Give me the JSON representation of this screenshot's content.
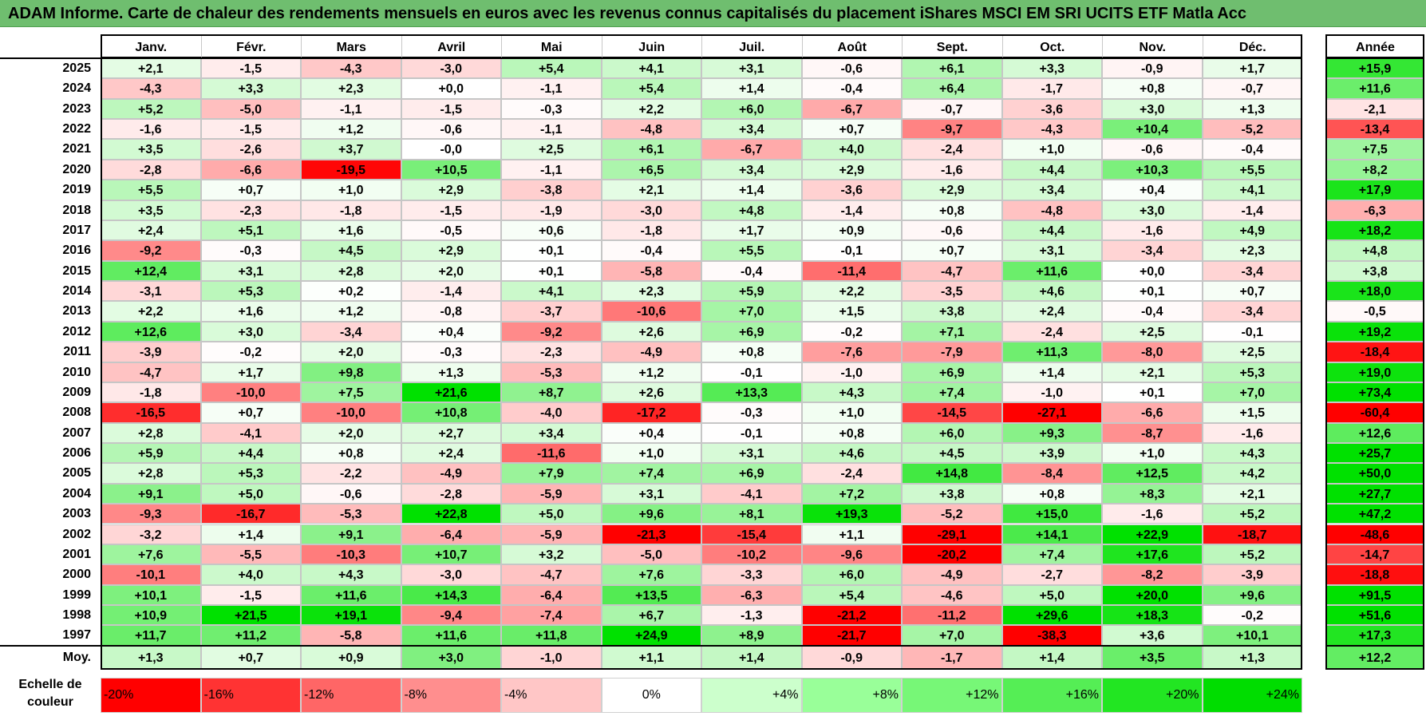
{
  "title": "ADAM Informe. Carte de chaleur des rendements mensuels en euros avec les revenus connus capitalisés du placement iShares MSCI EM SRI UCITS ETF Matla Acc",
  "chart_data": {
    "type": "heatmap",
    "title": "ADAM Informe. Carte de chaleur des rendements mensuels en euros avec les revenus connus capitalisés du placement iShares MSCI EM SRI UCITS ETF Matla Acc",
    "months": [
      "Janv.",
      "Févr.",
      "Mars",
      "Avril",
      "Mai",
      "Juin",
      "Juil.",
      "Août",
      "Sept.",
      "Oct.",
      "Nov.",
      "Déc."
    ],
    "annual_label": "Année",
    "rows": [
      {
        "year": "2025",
        "values": [
          "+2,1",
          "-1,5",
          "-4,3",
          "-3,0",
          "+5,4",
          "+4,1",
          "+3,1",
          "-0,6",
          "+6,1",
          "+3,3",
          "-0,9",
          "+1,7"
        ],
        "annual": "+15,9"
      },
      {
        "year": "2024",
        "values": [
          "-4,3",
          "+3,3",
          "+2,3",
          "+0,0",
          "-1,1",
          "+5,4",
          "+1,4",
          "-0,4",
          "+6,4",
          "-1,7",
          "+0,8",
          "-0,7"
        ],
        "annual": "+11,6"
      },
      {
        "year": "2023",
        "values": [
          "+5,2",
          "-5,0",
          "-1,1",
          "-1,5",
          "-0,3",
          "+2,2",
          "+6,0",
          "-6,7",
          "-0,7",
          "-3,6",
          "+3,0",
          "+1,3"
        ],
        "annual": "-2,1"
      },
      {
        "year": "2022",
        "values": [
          "-1,6",
          "-1,5",
          "+1,2",
          "-0,6",
          "-1,1",
          "-4,8",
          "+3,4",
          "+0,7",
          "-9,7",
          "-4,3",
          "+10,4",
          "-5,2"
        ],
        "annual": "-13,4"
      },
      {
        "year": "2021",
        "values": [
          "+3,5",
          "-2,6",
          "+3,7",
          "-0,0",
          "+2,5",
          "+6,1",
          "-6,7",
          "+4,0",
          "-2,4",
          "+1,0",
          "-0,6",
          "-0,4"
        ],
        "annual": "+7,5"
      },
      {
        "year": "2020",
        "values": [
          "-2,8",
          "-6,6",
          "-19,5",
          "+10,5",
          "-1,1",
          "+6,5",
          "+3,4",
          "+2,9",
          "-1,6",
          "+4,4",
          "+10,3",
          "+5,5"
        ],
        "annual": "+8,2"
      },
      {
        "year": "2019",
        "values": [
          "+5,5",
          "+0,7",
          "+1,0",
          "+2,9",
          "-3,8",
          "+2,1",
          "+1,4",
          "-3,6",
          "+2,9",
          "+3,4",
          "+0,4",
          "+4,1"
        ],
        "annual": "+17,9"
      },
      {
        "year": "2018",
        "values": [
          "+3,5",
          "-2,3",
          "-1,8",
          "-1,5",
          "-1,9",
          "-3,0",
          "+4,8",
          "-1,4",
          "+0,8",
          "-4,8",
          "+3,0",
          "-1,4"
        ],
        "annual": "-6,3"
      },
      {
        "year": "2017",
        "values": [
          "+2,4",
          "+5,1",
          "+1,6",
          "-0,5",
          "+0,6",
          "-1,8",
          "+1,7",
          "+0,9",
          "-0,6",
          "+4,4",
          "-1,6",
          "+4,9"
        ],
        "annual": "+18,2"
      },
      {
        "year": "2016",
        "values": [
          "-9,2",
          "-0,3",
          "+4,5",
          "+2,9",
          "+0,1",
          "-0,4",
          "+5,5",
          "-0,1",
          "+0,7",
          "+3,1",
          "-3,4",
          "+2,3"
        ],
        "annual": "+4,8"
      },
      {
        "year": "2015",
        "values": [
          "+12,4",
          "+3,1",
          "+2,8",
          "+2,0",
          "+0,1",
          "-5,8",
          "-0,4",
          "-11,4",
          "-4,7",
          "+11,6",
          "+0,0",
          "-3,4"
        ],
        "annual": "+3,8"
      },
      {
        "year": "2014",
        "values": [
          "-3,1",
          "+5,3",
          "+0,2",
          "-1,4",
          "+4,1",
          "+2,3",
          "+5,9",
          "+2,2",
          "-3,5",
          "+4,6",
          "+0,1",
          "+0,7"
        ],
        "annual": "+18,0"
      },
      {
        "year": "2013",
        "values": [
          "+2,2",
          "+1,6",
          "+1,2",
          "-0,8",
          "-3,7",
          "-10,6",
          "+7,0",
          "+1,5",
          "+3,8",
          "+2,4",
          "-0,4",
          "-3,4"
        ],
        "annual": "-0,5"
      },
      {
        "year": "2012",
        "values": [
          "+12,6",
          "+3,0",
          "-3,4",
          "+0,4",
          "-9,2",
          "+2,6",
          "+6,9",
          "-0,2",
          "+7,1",
          "-2,4",
          "+2,5",
          "-0,1"
        ],
        "annual": "+19,2"
      },
      {
        "year": "2011",
        "values": [
          "-3,9",
          "-0,2",
          "+2,0",
          "-0,3",
          "-2,3",
          "-4,9",
          "+0,8",
          "-7,6",
          "-7,9",
          "+11,3",
          "-8,0",
          "+2,5"
        ],
        "annual": "-18,4"
      },
      {
        "year": "2010",
        "values": [
          "-4,7",
          "+1,7",
          "+9,8",
          "+1,3",
          "-5,3",
          "+1,2",
          "-0,1",
          "-1,0",
          "+6,9",
          "+1,4",
          "+2,1",
          "+5,3"
        ],
        "annual": "+19,0"
      },
      {
        "year": "2009",
        "values": [
          "-1,8",
          "-10,0",
          "+7,5",
          "+21,6",
          "+8,7",
          "+2,6",
          "+13,3",
          "+4,3",
          "+7,4",
          "-1,0",
          "+0,1",
          "+7,0"
        ],
        "annual": "+73,4"
      },
      {
        "year": "2008",
        "values": [
          "-16,5",
          "+0,7",
          "-10,0",
          "+10,8",
          "-4,0",
          "-17,2",
          "-0,3",
          "+1,0",
          "-14,5",
          "-27,1",
          "-6,6",
          "+1,5"
        ],
        "annual": "-60,4"
      },
      {
        "year": "2007",
        "values": [
          "+2,8",
          "-4,1",
          "+2,0",
          "+2,7",
          "+3,4",
          "+0,4",
          "-0,1",
          "+0,8",
          "+6,0",
          "+9,3",
          "-8,7",
          "-1,6"
        ],
        "annual": "+12,6"
      },
      {
        "year": "2006",
        "values": [
          "+5,9",
          "+4,4",
          "+0,8",
          "+2,4",
          "-11,6",
          "+1,0",
          "+3,1",
          "+4,6",
          "+4,5",
          "+3,9",
          "+1,0",
          "+4,3"
        ],
        "annual": "+25,7"
      },
      {
        "year": "2005",
        "values": [
          "+2,8",
          "+5,3",
          "-2,2",
          "-4,9",
          "+7,9",
          "+7,4",
          "+6,9",
          "-2,4",
          "+14,8",
          "-8,4",
          "+12,5",
          "+4,2"
        ],
        "annual": "+50,0"
      },
      {
        "year": "2004",
        "values": [
          "+9,1",
          "+5,0",
          "-0,6",
          "-2,8",
          "-5,9",
          "+3,1",
          "-4,1",
          "+7,2",
          "+3,8",
          "+0,8",
          "+8,3",
          "+2,1"
        ],
        "annual": "+27,7"
      },
      {
        "year": "2003",
        "values": [
          "-9,3",
          "-16,7",
          "-5,3",
          "+22,8",
          "+5,0",
          "+9,6",
          "+8,1",
          "+19,3",
          "-5,2",
          "+15,0",
          "-1,6",
          "+5,2"
        ],
        "annual": "+47,2"
      },
      {
        "year": "2002",
        "values": [
          "-3,2",
          "+1,4",
          "+9,1",
          "-6,4",
          "-5,9",
          "-21,3",
          "-15,4",
          "+1,1",
          "-29,1",
          "+14,1",
          "+22,9",
          "-18,7"
        ],
        "annual": "-48,6"
      },
      {
        "year": "2001",
        "values": [
          "+7,6",
          "-5,5",
          "-10,3",
          "+10,7",
          "+3,2",
          "-5,0",
          "-10,2",
          "-9,6",
          "-20,2",
          "+7,4",
          "+17,6",
          "+5,2"
        ],
        "annual": "-14,7"
      },
      {
        "year": "2000",
        "values": [
          "-10,1",
          "+4,0",
          "+4,3",
          "-3,0",
          "-4,7",
          "+7,6",
          "-3,3",
          "+6,0",
          "-4,9",
          "-2,7",
          "-8,2",
          "-3,9"
        ],
        "annual": "-18,8"
      },
      {
        "year": "1999",
        "values": [
          "+10,1",
          "-1,5",
          "+11,6",
          "+14,3",
          "-6,4",
          "+13,5",
          "-6,3",
          "+5,4",
          "-4,6",
          "+5,0",
          "+20,0",
          "+9,6"
        ],
        "annual": "+91,5"
      },
      {
        "year": "1998",
        "values": [
          "+10,9",
          "+21,5",
          "+19,1",
          "-9,4",
          "-7,4",
          "+6,7",
          "-1,3",
          "-21,2",
          "-11,2",
          "+29,6",
          "+18,3",
          "-0,2"
        ],
        "annual": "+51,6"
      },
      {
        "year": "1997",
        "values": [
          "+11,7",
          "+11,2",
          "-5,8",
          "+11,6",
          "+11,8",
          "+24,9",
          "+8,9",
          "-21,7",
          "+7,0",
          "-38,3",
          "+3,6",
          "+10,1"
        ],
        "annual": "+17,3"
      }
    ],
    "average": {
      "label": "Moy.",
      "values": [
        "+1,3",
        "+0,7",
        "+0,9",
        "+3,0",
        "-1,0",
        "+1,1",
        "+1,4",
        "-0,9",
        "-1,7",
        "+1,4",
        "+3,5",
        "+1,3"
      ],
      "annual": "+12,2"
    },
    "scale": {
      "label_line1": "Echelle de",
      "label_line2": "couleur",
      "stops": [
        {
          "label": "-20%",
          "value": -20,
          "color": "#ff0000"
        },
        {
          "label": "-16%",
          "value": -16,
          "color": "#ff3333"
        },
        {
          "label": "-12%",
          "value": -12,
          "color": "#ff6666"
        },
        {
          "label": "-8%",
          "value": -8,
          "color": "#ff8e8e"
        },
        {
          "label": "-4%",
          "value": -4,
          "color": "#ffc6c6"
        },
        {
          "label": "0%",
          "value": 0,
          "color": "#ffffff"
        },
        {
          "label": "+4%",
          "value": 4,
          "color": "#ccffcc"
        },
        {
          "label": "+8%",
          "value": 8,
          "color": "#99ff99"
        },
        {
          "label": "+12%",
          "value": 12,
          "color": "#77f777"
        },
        {
          "label": "+16%",
          "value": 16,
          "color": "#55ee55"
        },
        {
          "label": "+20%",
          "value": 20,
          "color": "#22e622"
        },
        {
          "label": "+24%",
          "value": 24,
          "color": "#00dd00"
        }
      ]
    }
  }
}
